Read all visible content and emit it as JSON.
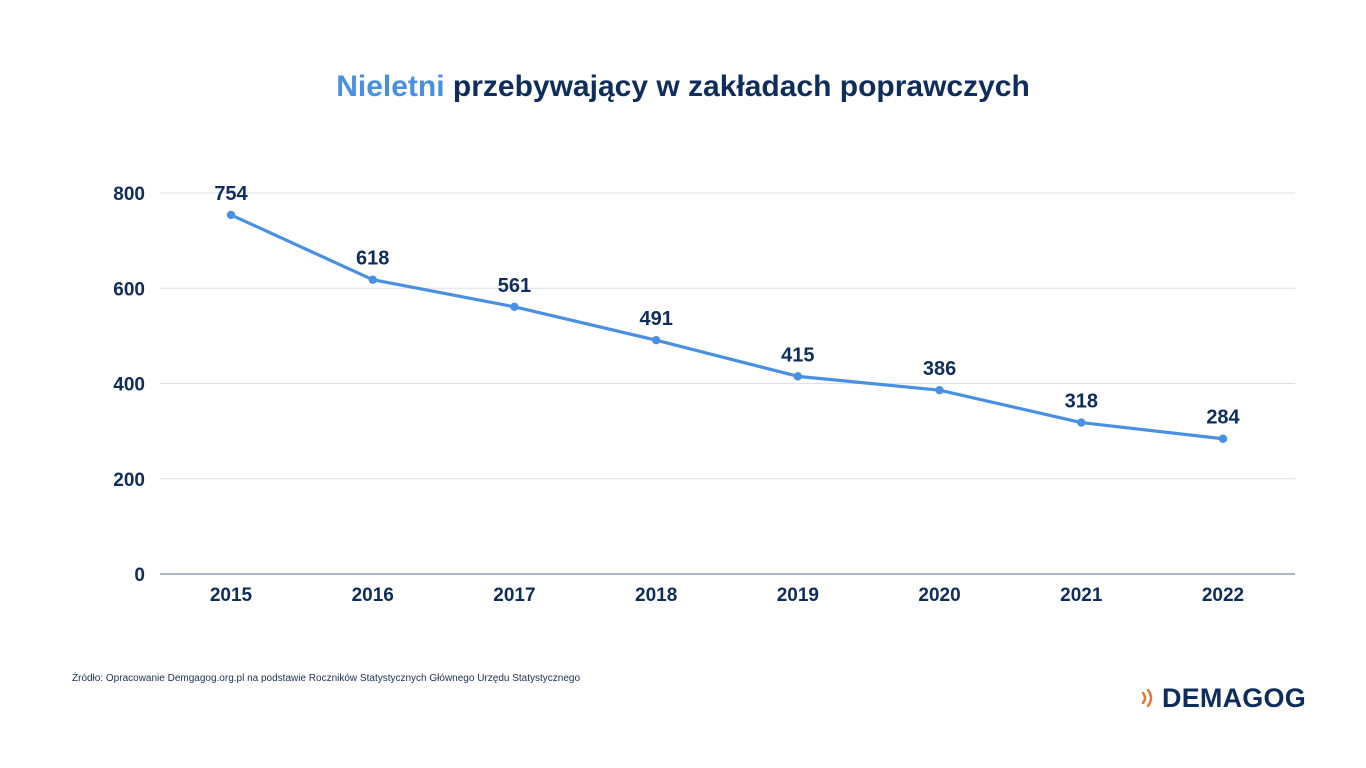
{
  "title": {
    "highlight": "Nieletni",
    "rest": " przebywający w zakładach poprawczych"
  },
  "colors": {
    "title_dark": "#0f2d5c",
    "highlight": "#4a90e2",
    "line": "#4a90e2",
    "grid": "#dcdfea",
    "baseline": "#7a8aa8",
    "text": "#0f2d5c",
    "logo_mark": "#e8742f"
  },
  "chart_data": {
    "type": "line",
    "categories": [
      "2015",
      "2016",
      "2017",
      "2018",
      "2019",
      "2020",
      "2021",
      "2022"
    ],
    "series": [
      {
        "values": [
          754,
          618,
          561,
          491,
          415,
          386,
          318,
          284
        ]
      }
    ],
    "data_labels": [
      "754",
      "618",
      "561",
      "491",
      "415",
      "386",
      "318",
      "284"
    ],
    "yticks": [
      0,
      200,
      400,
      600,
      800
    ],
    "ylim": [
      0,
      800
    ],
    "grid": true,
    "xlabel": "",
    "ylabel": ""
  },
  "source": "Źródło: Opracowanie Demgagog.org.pl na podstawie Roczników Statystycznych Głównego Urzędu Statystycznego",
  "logo": {
    "text": "DEMAGOG",
    "mark_icon": "signal-waves-icon"
  }
}
